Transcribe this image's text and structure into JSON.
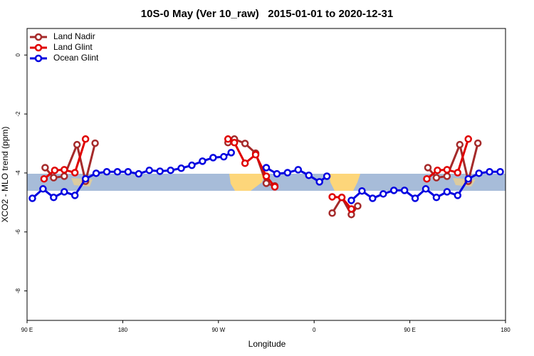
{
  "chart_data": {
    "type": "line",
    "title": "10S-0 May (Ver 10_raw)   2015-01-01 to 2020-12-31",
    "xlabel": "Longitude",
    "ylabel": "XCO2 - MLO trend (ppm)",
    "xlim": [
      90,
      540
    ],
    "ylim": [
      -9,
      0.9
    ],
    "xticks": [
      {
        "value": 90,
        "label": "90 E"
      },
      {
        "value": 180,
        "label": "180"
      },
      {
        "value": 270,
        "label": "90 W"
      },
      {
        "value": 360,
        "label": "0"
      },
      {
        "value": 450,
        "label": "90 E"
      },
      {
        "value": 540,
        "label": "180"
      }
    ],
    "yticks": [
      0,
      -2,
      -4,
      -6,
      -8
    ],
    "legend": "top-left",
    "series": [
      {
        "name": "Land Nadir",
        "color": "#a52a2a",
        "x": [
          107,
          115,
          125,
          137,
          145,
          154,
          200,
          279,
          285,
          295,
          305,
          315,
          323,
          350,
          377,
          386,
          395,
          401,
          430,
          467,
          475,
          485,
          497,
          505,
          514
        ],
        "values": [
          -3.82,
          -4.16,
          -4.11,
          -3.04,
          -4.28,
          -2.99,
          null,
          -2.97,
          -2.85,
          -3.0,
          -3.33,
          -4.35,
          -4.44,
          null,
          -5.36,
          -4.83,
          -5.41,
          -5.12,
          null,
          -3.82,
          -4.16,
          -4.11,
          -3.04,
          -4.28,
          -2.99
        ]
      },
      {
        "name": "Land Glint",
        "color": "#e00000",
        "x": [
          106,
          116,
          125,
          135,
          145,
          200,
          279,
          285,
          295,
          305,
          315,
          323,
          350,
          377,
          386,
          395,
          430,
          466,
          476,
          485,
          495,
          505
        ],
        "values": [
          -4.2,
          -3.91,
          -3.89,
          -3.99,
          -2.85,
          null,
          -2.85,
          -2.97,
          -3.67,
          -3.38,
          -4.11,
          -4.47,
          null,
          -4.81,
          -4.83,
          -5.22,
          null,
          -4.2,
          -3.91,
          -3.89,
          -3.99,
          -2.85
        ]
      },
      {
        "name": "Ocean Glint",
        "color": "#0000e0",
        "x": [
          95,
          105,
          115,
          125,
          135,
          145,
          155,
          165,
          175,
          185,
          195,
          205,
          215,
          225,
          235,
          245,
          255,
          265,
          275,
          282,
          300,
          315,
          325,
          335,
          345,
          355,
          365,
          372,
          385,
          395,
          405,
          415,
          425,
          435,
          445,
          455,
          465,
          475,
          485,
          495,
          505,
          515,
          525,
          535
        ],
        "values": [
          -4.86,
          -4.54,
          -4.83,
          -4.64,
          -4.76,
          -4.2,
          -4.01,
          -3.96,
          -3.96,
          -3.96,
          -4.03,
          -3.91,
          -3.94,
          -3.91,
          -3.84,
          -3.74,
          -3.6,
          -3.48,
          -3.45,
          -3.31,
          null,
          -3.82,
          -4.03,
          -3.99,
          -3.89,
          -4.08,
          -4.3,
          -4.11,
          null,
          -4.93,
          -4.61,
          -4.86,
          -4.71,
          -4.59,
          -4.59,
          -4.86,
          -4.54,
          -4.83,
          -4.64,
          -4.76,
          -4.2,
          -4.01,
          -3.96,
          -3.96
        ]
      }
    ]
  }
}
